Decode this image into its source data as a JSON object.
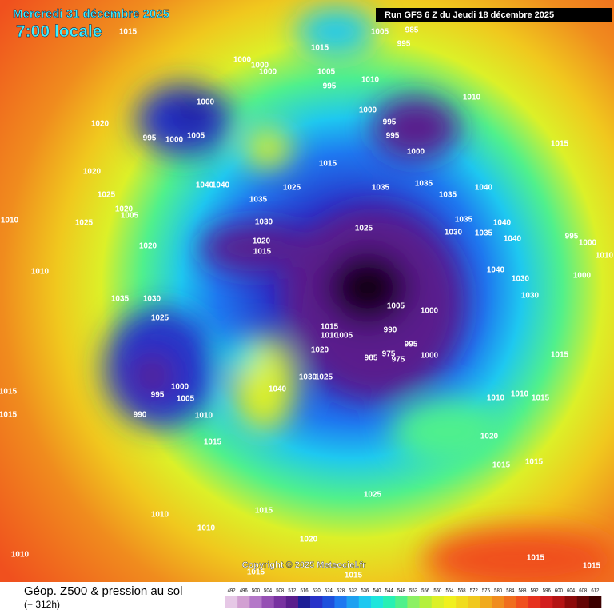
{
  "header": {
    "date": "Mercredi 31 décembre 2025",
    "time": "7:00 locale",
    "run": "Run GFS 6 Z du Jeudi 18 décembre 2025"
  },
  "pressure_labels": [
    "1015",
    "1005",
    "985",
    "995",
    "1015",
    "1000",
    "1000",
    "1000",
    "1005",
    "1010",
    "995",
    "1000",
    "1000",
    "995",
    "995",
    "1010",
    "1020",
    "995",
    "1000",
    "1005",
    "1000",
    "1015",
    "1015",
    "1020",
    "1035",
    "1040",
    "1040",
    "1025",
    "1035",
    "1035",
    "1040",
    "1025",
    "1035",
    "1020",
    "1005",
    "1010",
    "1025",
    "1030",
    "1035",
    "1040",
    "1025",
    "1030",
    "1035",
    "995",
    "1000",
    "1020",
    "1040",
    "1015",
    "1010",
    "1020",
    "1040",
    "1010",
    "1030",
    "1000",
    "1035",
    "1030",
    "1030",
    "1005",
    "1000",
    "1025",
    "1015",
    "990",
    "1010",
    "1005",
    "995",
    "1015",
    "1020",
    "1000",
    "985",
    "975",
    "975",
    "1040",
    "1030",
    "1025",
    "995",
    "1000",
    "1005",
    "1015",
    "1010",
    "990",
    "1010",
    "1010",
    "1015",
    "1020",
    "1015",
    "1015",
    "1015",
    "1025",
    "1015",
    "1010",
    "1010",
    "1020",
    "1010",
    "1015",
    "1015",
    "1015",
    "1015",
    "1015"
  ],
  "copyright": "Copyright © 2025 Meteociel.fr",
  "legend": {
    "title": "Géop. Z500 & pression au sol",
    "subtitle": "(+ 312h)",
    "scale": [
      {
        "value": 492,
        "color": "#e6c8e6"
      },
      {
        "value": 496,
        "color": "#d2a0d2"
      },
      {
        "value": 500,
        "color": "#b478c8"
      },
      {
        "value": 504,
        "color": "#9650b4"
      },
      {
        "value": 508,
        "color": "#7832a0"
      },
      {
        "value": 512,
        "color": "#5a1e8c"
      },
      {
        "value": 516,
        "color": "#1e1e96"
      },
      {
        "value": 520,
        "color": "#2832c8"
      },
      {
        "value": 524,
        "color": "#1e50dc"
      },
      {
        "value": 528,
        "color": "#1e78f0"
      },
      {
        "value": 532,
        "color": "#1ea0f0"
      },
      {
        "value": 536,
        "color": "#1ec8f0"
      },
      {
        "value": 540,
        "color": "#1ee6dc"
      },
      {
        "value": 544,
        "color": "#28f0b4"
      },
      {
        "value": 548,
        "color": "#50f08c"
      },
      {
        "value": 552,
        "color": "#8cf064"
      },
      {
        "value": 556,
        "color": "#b4f03c"
      },
      {
        "value": 560,
        "color": "#dcf028"
      },
      {
        "value": 564,
        "color": "#f0f01e"
      },
      {
        "value": 568,
        "color": "#f0dc1e"
      },
      {
        "value": 572,
        "color": "#f0c81e"
      },
      {
        "value": 576,
        "color": "#f0aa1e"
      },
      {
        "value": 580,
        "color": "#f08c1e"
      },
      {
        "value": 584,
        "color": "#f06e1e"
      },
      {
        "value": 588,
        "color": "#f0501e"
      },
      {
        "value": 592,
        "color": "#e6321e"
      },
      {
        "value": 596,
        "color": "#d21e1e"
      },
      {
        "value": 600,
        "color": "#b41414"
      },
      {
        "value": 604,
        "color": "#8c0a0a"
      },
      {
        "value": 608,
        "color": "#640505"
      },
      {
        "value": 612,
        "color": "#3c0000"
      }
    ]
  }
}
